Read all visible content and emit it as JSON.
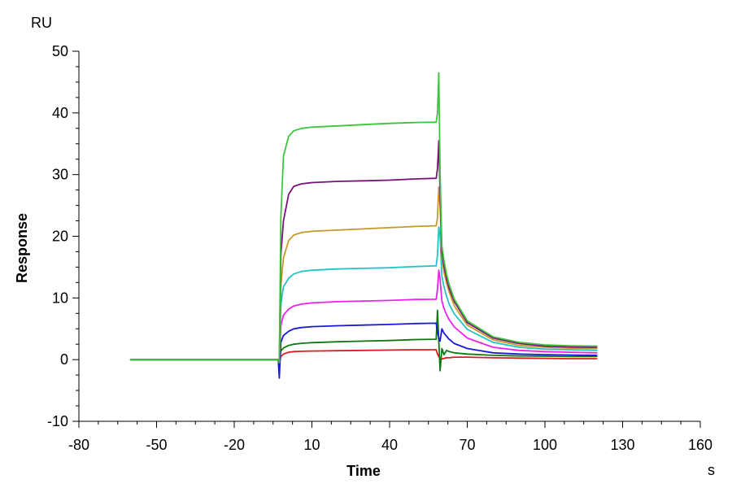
{
  "chart_data": {
    "type": "line",
    "title": "",
    "xlabel": "Time",
    "ylabel": "Response",
    "y_unit": "RU",
    "x_unit": "s",
    "xlim": [
      -80,
      160
    ],
    "ylim": [
      -10,
      50
    ],
    "x_ticks": [
      -80,
      -50,
      -20,
      10,
      40,
      70,
      100,
      130,
      160
    ],
    "y_ticks": [
      -10,
      0,
      10,
      20,
      30,
      40,
      50
    ],
    "grid": false,
    "legend": "none",
    "series": [
      {
        "color": "#d62020",
        "x": [
          -60,
          -3,
          -2.6,
          -2,
          -1,
          1,
          3,
          6,
          10,
          20,
          30,
          40,
          50,
          58,
          58.5,
          59,
          59.5,
          60.2,
          61,
          62,
          63,
          65,
          70,
          80,
          90,
          100,
          110,
          120
        ],
        "y": [
          0,
          0,
          -0.5,
          0.5,
          0.9,
          1.2,
          1.3,
          1.35,
          1.4,
          1.45,
          1.5,
          1.55,
          1.6,
          1.6,
          0.9,
          0.5,
          0.2,
          0.1,
          0.2,
          0.3,
          0.3,
          0.4,
          0.4,
          0.3,
          0.25,
          0.2,
          0.15,
          0.15
        ]
      },
      {
        "color": "#117711",
        "x": [
          -60,
          -3,
          -2.6,
          -2,
          -1,
          1,
          3,
          6,
          10,
          20,
          30,
          40,
          50,
          58,
          58.5,
          59,
          59.5,
          60.2,
          61,
          62,
          63,
          65,
          70,
          80,
          90,
          100,
          110,
          120
        ],
        "y": [
          0,
          0,
          -0.5,
          1.4,
          1.9,
          2.3,
          2.5,
          2.65,
          2.75,
          2.9,
          3.0,
          3.1,
          3.25,
          3.3,
          8.0,
          3.0,
          -1.8,
          1.8,
          0.8,
          1.5,
          1.3,
          1.1,
          0.9,
          0.7,
          0.6,
          0.55,
          0.5,
          0.5
        ]
      },
      {
        "color": "#1a1ad6",
        "x": [
          -60,
          -3,
          -2.6,
          -2,
          -1,
          1,
          3,
          6,
          10,
          20,
          30,
          40,
          50,
          58,
          58.5,
          59,
          59.5,
          60.2,
          61,
          62,
          63,
          65,
          70,
          80,
          90,
          100,
          110,
          120
        ],
        "y": [
          0,
          0,
          -3,
          2.8,
          3.9,
          4.6,
          5.0,
          5.2,
          5.35,
          5.5,
          5.6,
          5.7,
          5.85,
          5.9,
          4.5,
          3.5,
          3.0,
          5.0,
          4.3,
          3.8,
          3.3,
          2.6,
          1.8,
          1.1,
          0.9,
          0.8,
          0.75,
          0.7
        ]
      },
      {
        "color": "#ee20ee",
        "x": [
          -60,
          -3,
          -2.6,
          -2,
          -1,
          1,
          3,
          6,
          10,
          20,
          30,
          40,
          50,
          58,
          58.5,
          59,
          59.5,
          60.2,
          61,
          62,
          63,
          65,
          70,
          80,
          90,
          100,
          110,
          120
        ],
        "y": [
          0,
          0,
          -0.5,
          5.5,
          7.2,
          8.2,
          8.7,
          9.0,
          9.2,
          9.4,
          9.5,
          9.6,
          9.75,
          9.8,
          11.5,
          14.5,
          13,
          9.5,
          8.3,
          7.3,
          6.5,
          5.3,
          3.5,
          2.0,
          1.5,
          1.3,
          1.2,
          1.1
        ]
      },
      {
        "color": "#22c4c4",
        "x": [
          -60,
          -3,
          -2.6,
          -2,
          -1,
          1,
          3,
          6,
          10,
          20,
          30,
          40,
          50,
          58,
          58.5,
          59,
          59.5,
          60.2,
          61,
          62,
          63,
          65,
          70,
          80,
          90,
          100,
          110,
          120
        ],
        "y": [
          0,
          0,
          -0.5,
          9,
          11.8,
          13.2,
          13.9,
          14.3,
          14.5,
          14.7,
          14.8,
          14.9,
          15.1,
          15.2,
          17,
          21.5,
          20,
          13.5,
          11.8,
          10.3,
          9.0,
          7.4,
          4.9,
          2.8,
          2.0,
          1.7,
          1.6,
          1.5
        ]
      },
      {
        "color": "#c49a28",
        "x": [
          -60,
          -3,
          -2.6,
          -2,
          -1,
          1,
          3,
          6,
          10,
          20,
          30,
          40,
          50,
          58,
          58.5,
          59,
          59.5,
          60.2,
          61,
          62,
          63,
          65,
          70,
          80,
          90,
          100,
          110,
          120
        ],
        "y": [
          0,
          0,
          -0.5,
          12,
          16.5,
          19.3,
          20.2,
          20.6,
          20.8,
          21.0,
          21.2,
          21.4,
          21.6,
          21.7,
          23,
          28,
          25,
          16.5,
          14.2,
          12.4,
          11.0,
          8.7,
          5.6,
          3.2,
          2.3,
          2.0,
          1.85,
          1.8
        ]
      },
      {
        "color": "#7a127a",
        "x": [
          -60,
          -3,
          -2.6,
          -2,
          -1,
          1,
          3,
          6,
          10,
          20,
          30,
          40,
          50,
          58,
          58.5,
          59,
          59.5,
          60.2,
          61,
          62,
          63,
          65,
          70,
          80,
          90,
          100,
          110,
          120
        ],
        "y": [
          0,
          0,
          -0.5,
          17,
          22.5,
          26.8,
          28.1,
          28.5,
          28.7,
          28.9,
          29.0,
          29.1,
          29.3,
          29.4,
          31,
          35.5,
          27,
          17.5,
          15.2,
          13.2,
          11.6,
          9.4,
          6.0,
          3.5,
          2.6,
          2.2,
          2.05,
          2.0
        ]
      },
      {
        "color": "#3ec43e",
        "x": [
          -60,
          -3,
          -2.6,
          -2,
          -1,
          1,
          3,
          6,
          10,
          20,
          30,
          40,
          50,
          58,
          58.5,
          59,
          59.5,
          60.2,
          61,
          62,
          63,
          65,
          70,
          80,
          90,
          100,
          110,
          120
        ],
        "y": [
          0,
          0,
          -0.5,
          23,
          33,
          36.2,
          37.1,
          37.5,
          37.7,
          37.9,
          38.1,
          38.3,
          38.45,
          38.5,
          40,
          46.5,
          30,
          18.5,
          16.0,
          13.9,
          12.2,
          9.8,
          6.3,
          3.7,
          2.8,
          2.4,
          2.25,
          2.2
        ]
      }
    ]
  }
}
